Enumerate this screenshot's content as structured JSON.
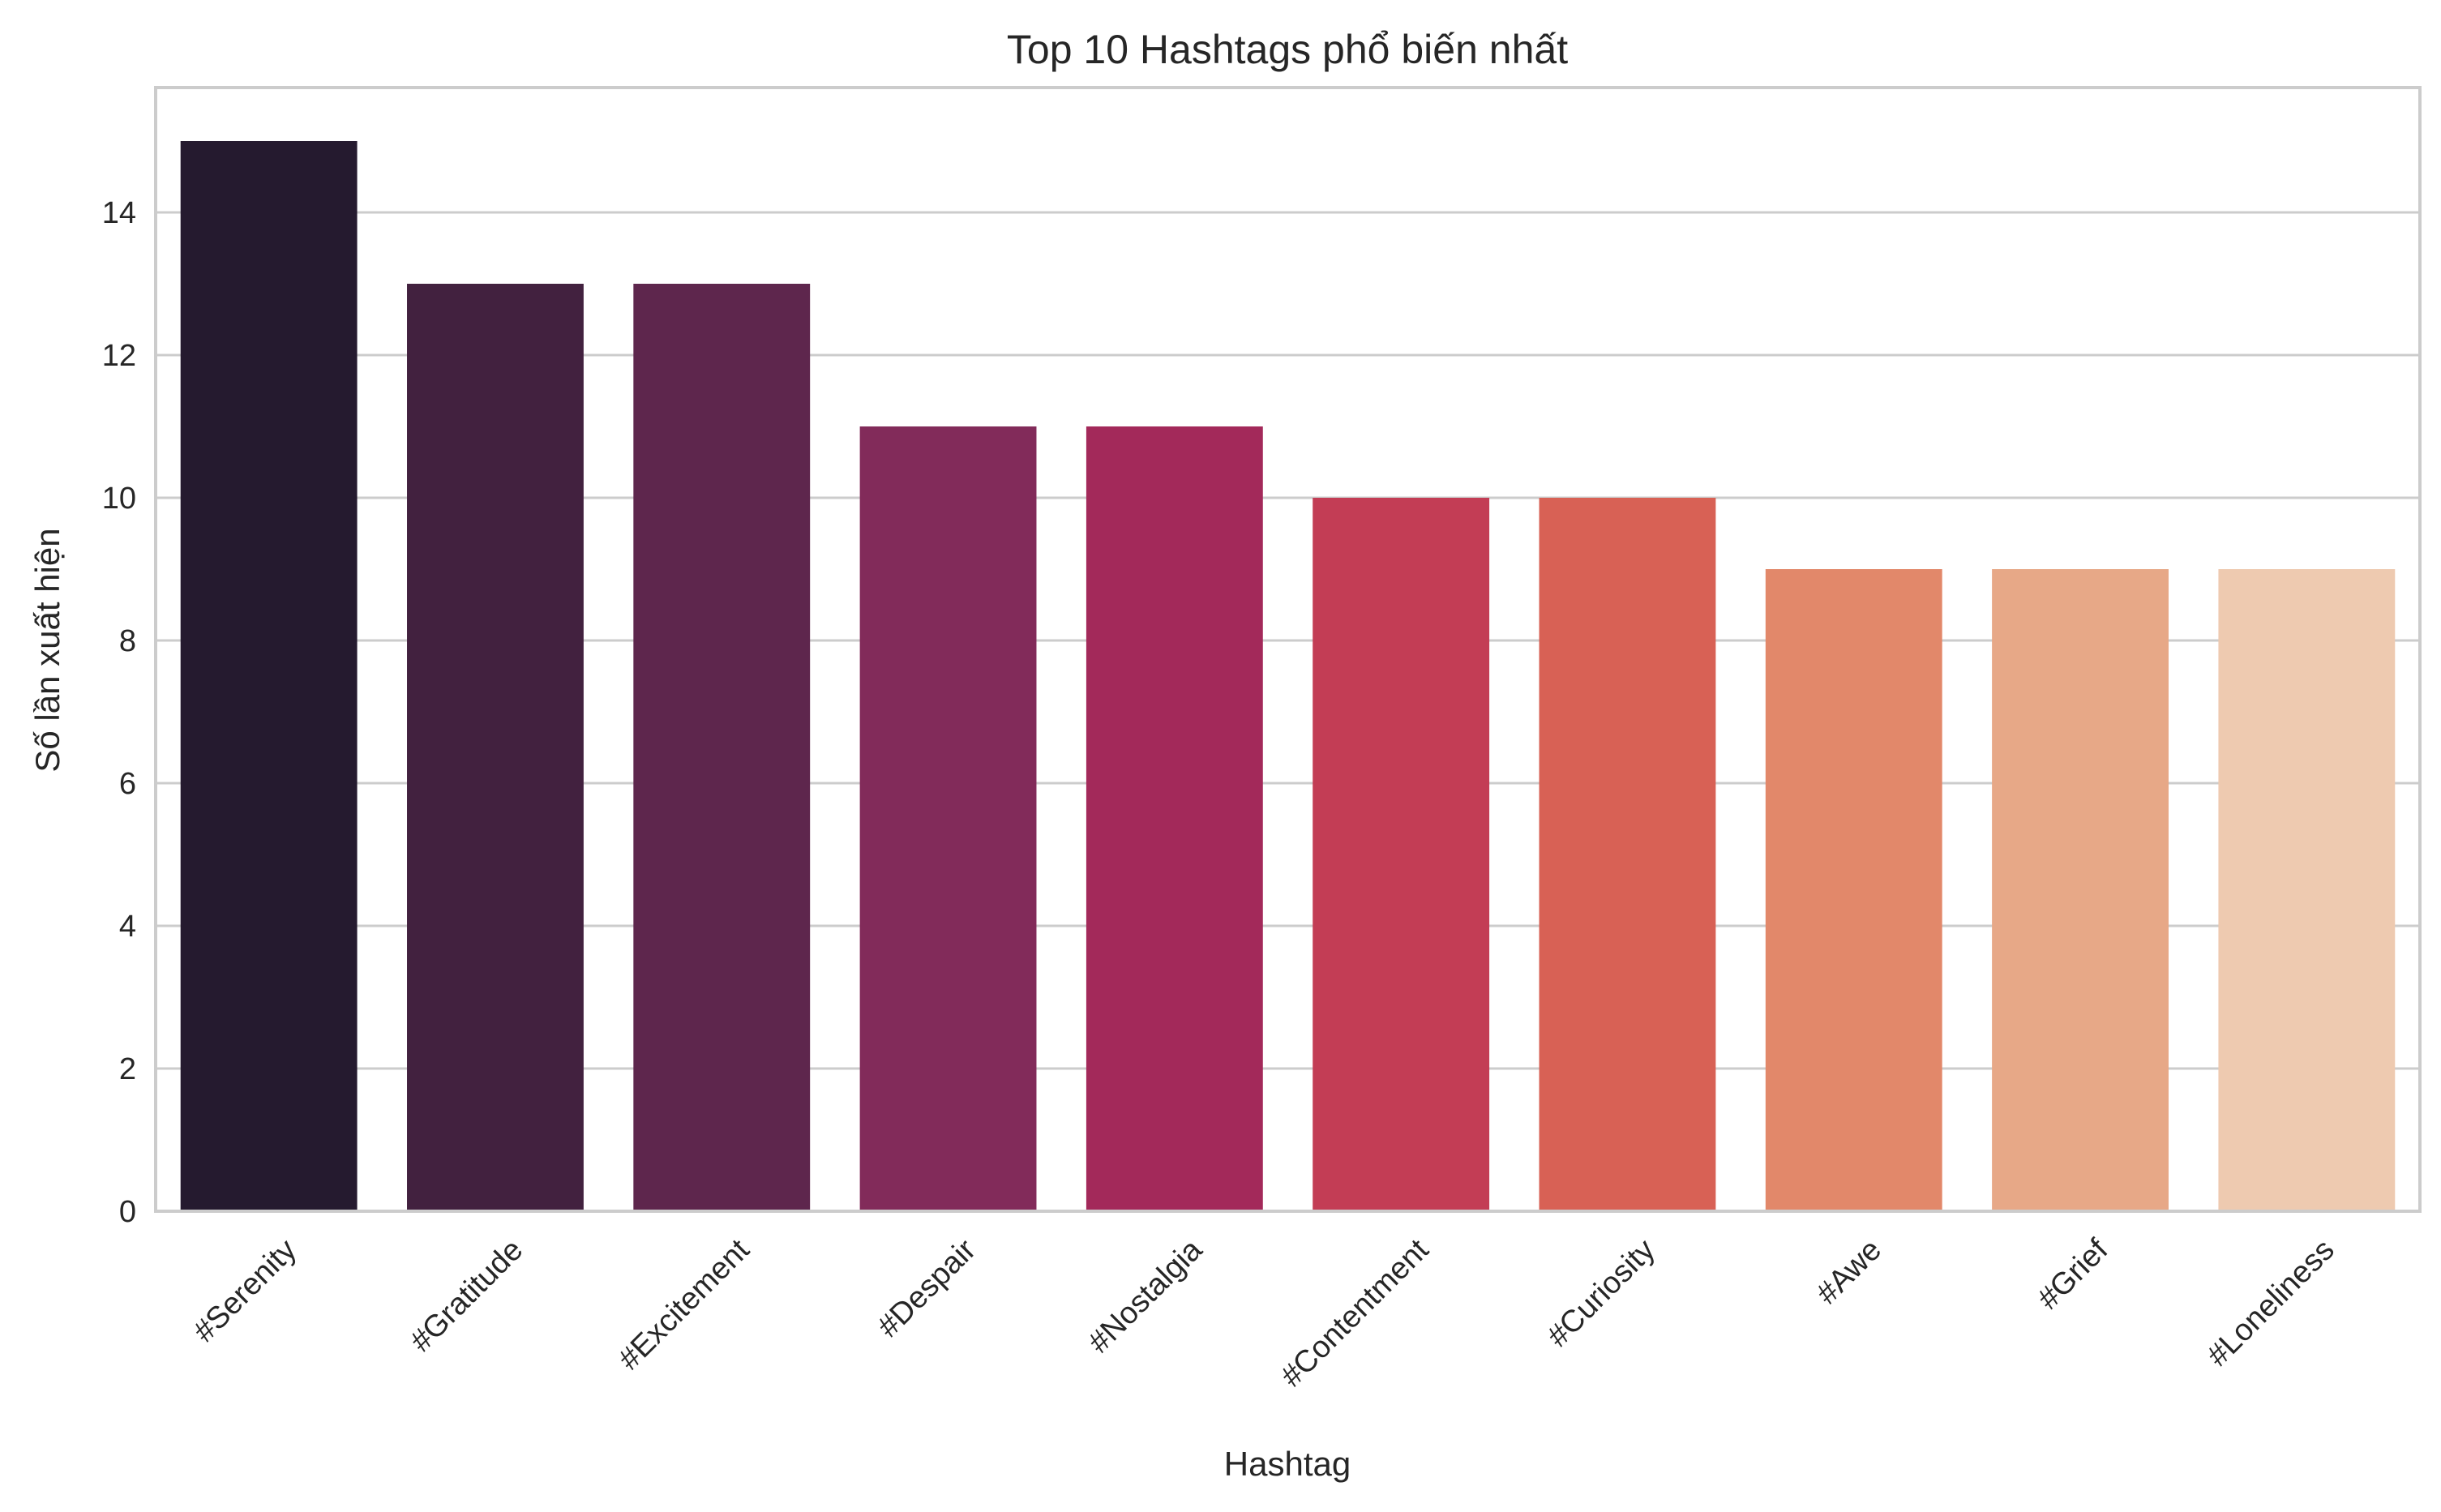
{
  "chart_data": {
    "type": "bar",
    "title": "Top 10 Hashtags phổ biến nhất",
    "xlabel": "Hashtag",
    "ylabel": "Số lần xuất hiện",
    "categories": [
      "#Serenity",
      "#Gratitude",
      "#Excitement",
      "#Despair",
      "#Nostalgia",
      "#Contentment",
      "#Curiosity",
      "#Awe",
      "#Grief",
      "#Loneliness"
    ],
    "values": [
      15,
      13,
      13,
      11,
      11,
      10,
      10,
      9,
      9,
      9
    ],
    "colors": [
      "#251a2f",
      "#42213f",
      "#5e264d",
      "#822b5a",
      "#a3295a",
      "#c33d55",
      "#d86155",
      "#e2886a",
      "#e7a887",
      "#eecab0"
    ],
    "ylim": [
      0,
      15.75
    ],
    "yticks": [
      0,
      2,
      4,
      6,
      8,
      10,
      12,
      14
    ],
    "grid": true,
    "grid_axis": "y",
    "legend": "none",
    "frame_color": "#cccccc",
    "grid_color": "#cccccc"
  }
}
